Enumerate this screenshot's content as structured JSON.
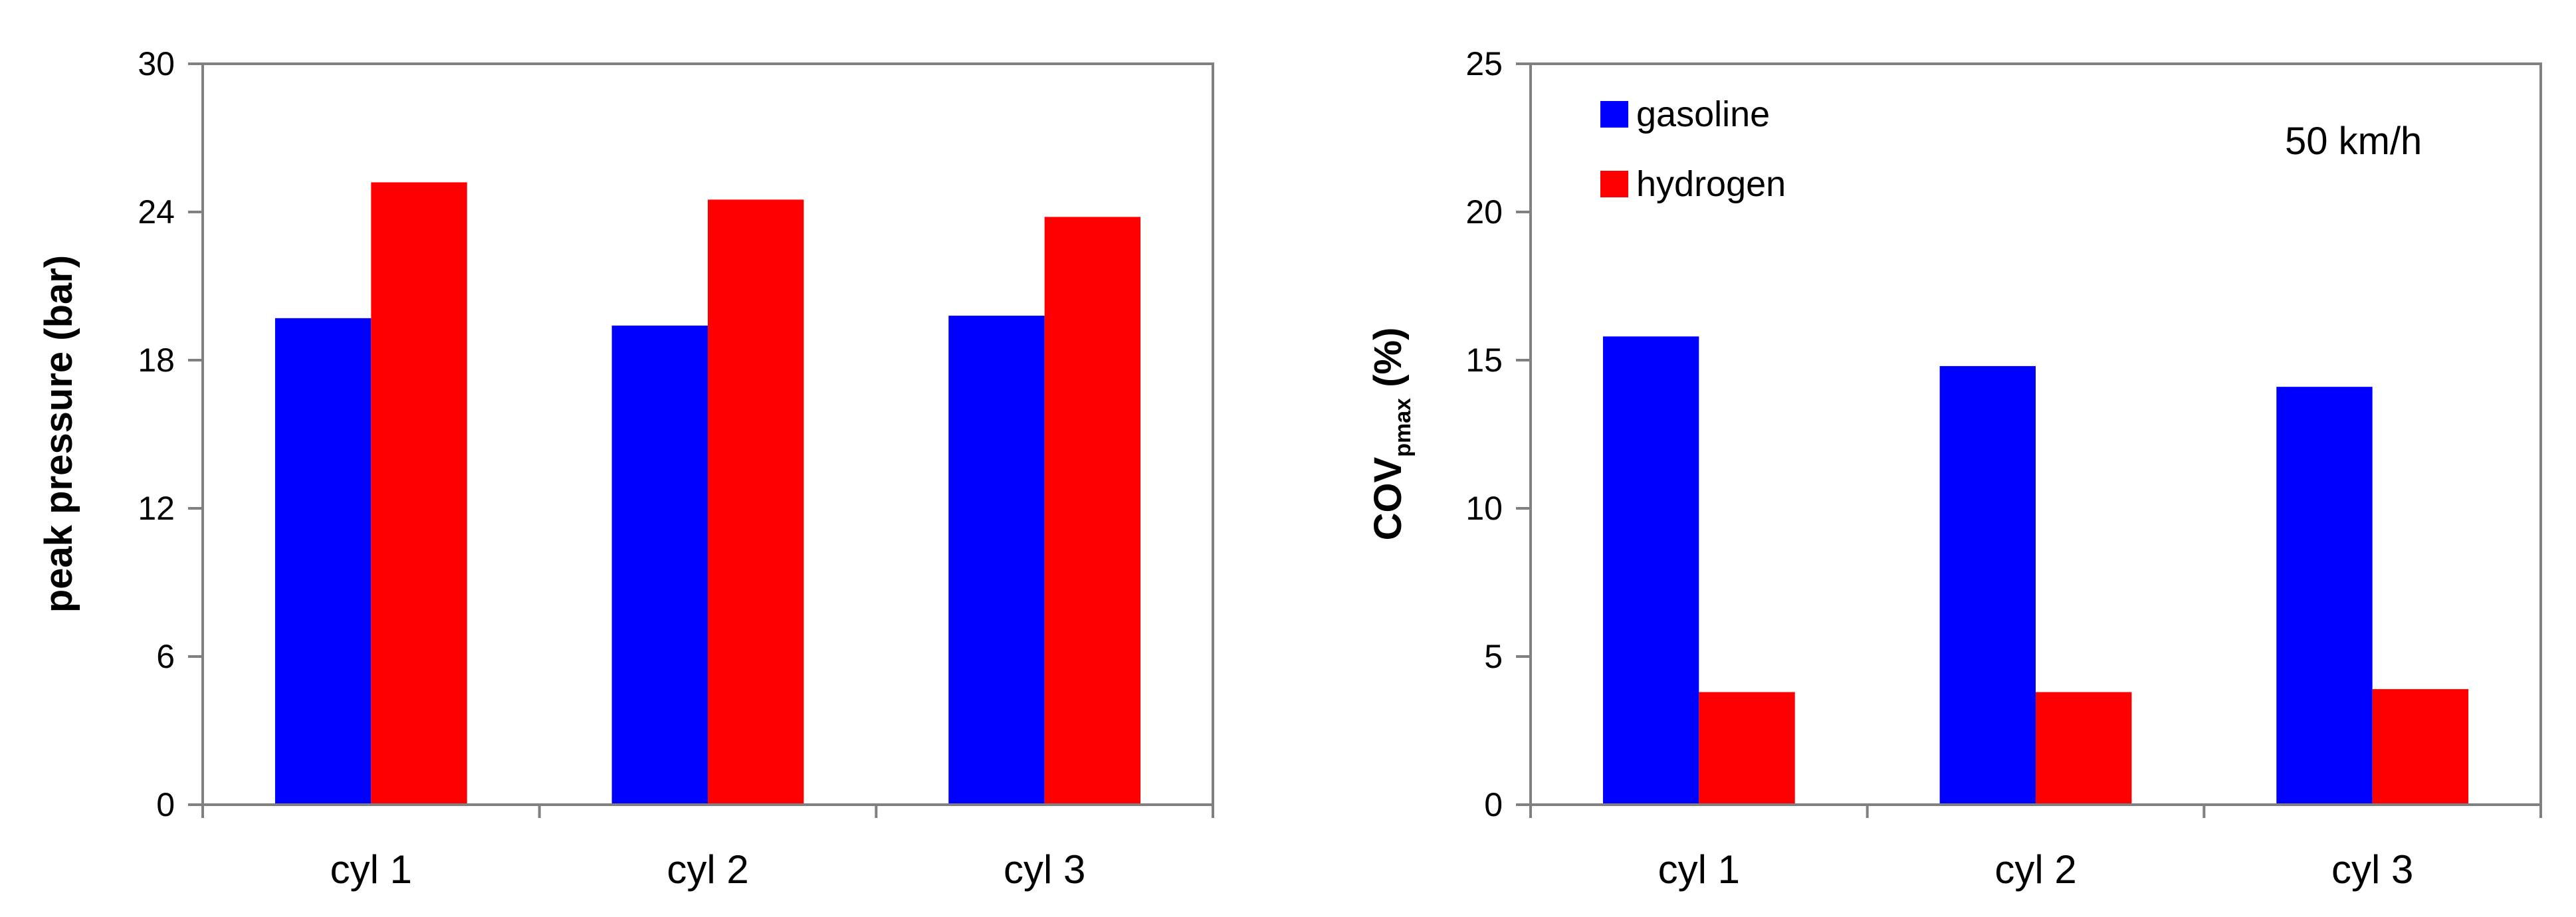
{
  "chart_data": [
    {
      "type": "bar",
      "title": "",
      "xlabel": "",
      "ylabel": "peak pressure (bar)",
      "ylim": [
        0,
        30
      ],
      "yticks": [
        0,
        6,
        12,
        18,
        24,
        30
      ],
      "categories": [
        "cyl 1",
        "cyl 2",
        "cyl 3"
      ],
      "series": [
        {
          "name": "gasoline",
          "values": [
            19.7,
            19.4,
            19.8
          ]
        },
        {
          "name": "hydrogen",
          "values": [
            25.2,
            24.5,
            23.8
          ]
        }
      ],
      "grid": false,
      "legend": false
    },
    {
      "type": "bar",
      "title": "",
      "xlabel": "",
      "ylabel": "COV",
      "ylabel_subscript": "pmax",
      "ylabel_suffix": " (%)",
      "ylim": [
        0,
        25
      ],
      "yticks": [
        0,
        5,
        10,
        15,
        20,
        25
      ],
      "categories": [
        "cyl 1",
        "cyl 2",
        "cyl 3"
      ],
      "series": [
        {
          "name": "gasoline",
          "values": [
            15.8,
            14.8,
            14.1
          ]
        },
        {
          "name": "hydrogen",
          "values": [
            3.8,
            3.8,
            3.9
          ]
        }
      ],
      "grid": false,
      "legend": "top-left",
      "annotation": "50 km/h"
    }
  ],
  "colors": {
    "gasoline": "#0000ff",
    "hydrogen": "#ff0000",
    "axis": "#808080"
  }
}
